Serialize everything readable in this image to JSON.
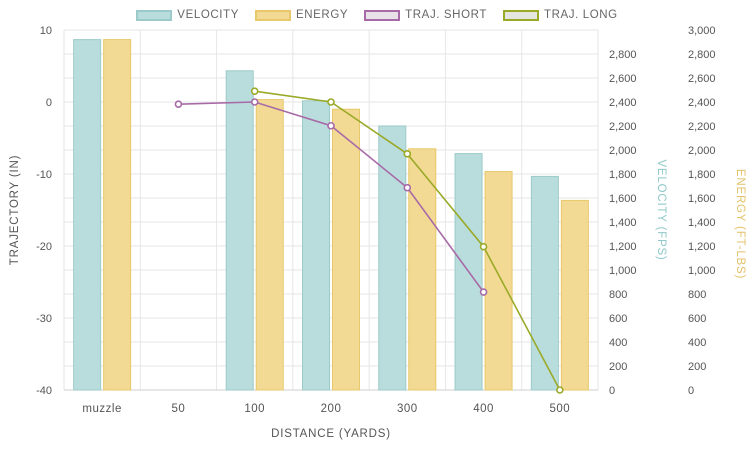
{
  "chart_data": {
    "type": "bar",
    "categories": [
      "muzzle",
      "50",
      "100",
      "200",
      "300",
      "400",
      "500"
    ],
    "xlabel": "DISTANCE (YARDS)",
    "left_axis": {
      "label": "TRAJECTORY (IN)",
      "ylim": [
        -40,
        10
      ],
      "ticks": [
        "10",
        "0",
        "-10",
        "-20",
        "-30",
        "-40"
      ]
    },
    "velocity_axis": {
      "label": "VELOCITY (FPS)",
      "ylim": [
        0,
        3000
      ],
      "ticks": [
        "2,800",
        "2,600",
        "2,400",
        "2,200",
        "2,000",
        "1,800",
        "1,600",
        "1,400",
        "1,200",
        "1,000",
        "800",
        "600",
        "400",
        "200",
        "0"
      ]
    },
    "energy_axis": {
      "label": "ENERGY (FT-LBS)",
      "ylim": [
        0,
        3000
      ],
      "ticks": [
        "3,000",
        "2,800",
        "2,600",
        "2,400",
        "2,200",
        "2,000",
        "1,800",
        "1,600",
        "1,400",
        "1,200",
        "1,000",
        "800",
        "600",
        "400",
        "200",
        "0"
      ]
    },
    "series": [
      {
        "name": "VELOCITY",
        "kind": "bar",
        "axis": "velocity",
        "color": "#b9dcdc",
        "border": "#9ccaca",
        "values": [
          2920,
          null,
          2660,
          2410,
          2200,
          1970,
          1780
        ]
      },
      {
        "name": "ENERGY",
        "kind": "bar",
        "axis": "energy",
        "color": "#f3da94",
        "border": "#e8c86a",
        "values": [
          2920,
          null,
          2420,
          2340,
          2010,
          1820,
          1580
        ]
      },
      {
        "name": "TRAJ. SHORT",
        "kind": "line",
        "axis": "trajectory",
        "color": "#a76aa7",
        "legend_fill": "#e8e2e8",
        "values": [
          null,
          -0.3,
          0,
          -3.3,
          -11.9,
          -26.4,
          null
        ]
      },
      {
        "name": "TRAJ. LONG",
        "kind": "line",
        "axis": "trajectory",
        "color": "#9aaa28",
        "legend_fill": "#e6e6e0",
        "values": [
          null,
          null,
          1.5,
          0,
          -7.2,
          -20.1,
          -40
        ]
      }
    ],
    "grid": true,
    "legend": "top"
  }
}
